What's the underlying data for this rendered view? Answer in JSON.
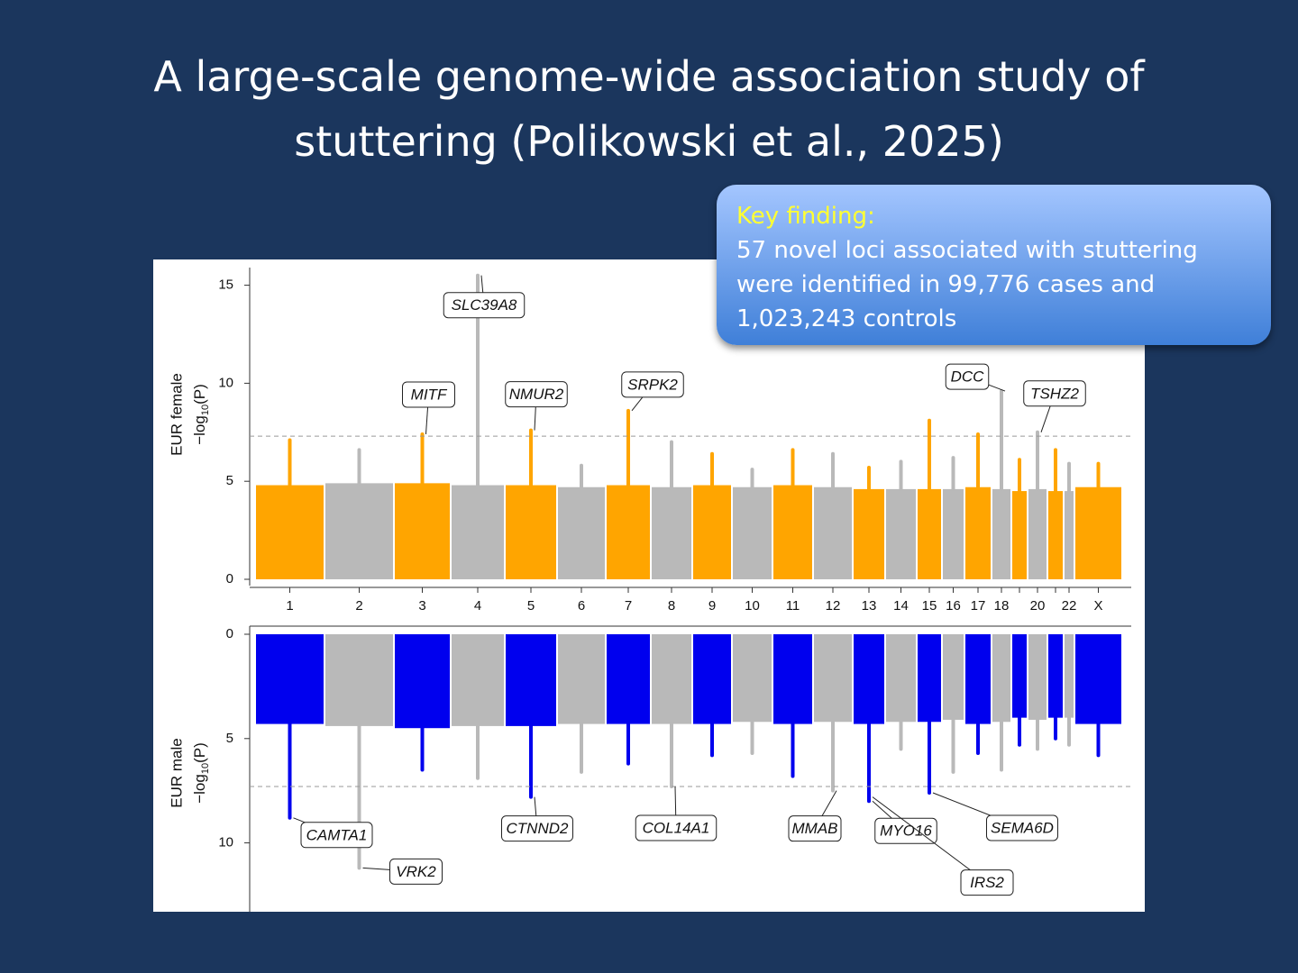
{
  "slide": {
    "title": [
      "A large-scale genome-wide association study of",
      "stuttering (Polikowski et al., 2025)"
    ],
    "callout": {
      "heading": "Key finding:",
      "lines": [
        "57 novel loci associated with stuttering",
        "were identified in 99,776 cases and",
        "1,023,243 controls"
      ]
    }
  },
  "chart_data": [
    {
      "type": "manhattan",
      "direction": "up",
      "ylabel": "EUR female",
      "ylabel_math": {
        "prefix": "−log",
        "sub": "10",
        "suffix": "(P)"
      },
      "categories": [
        "1",
        "2",
        "3",
        "4",
        "5",
        "6",
        "7",
        "8",
        "9",
        "10",
        "11",
        "12",
        "13",
        "14",
        "15",
        "16",
        "17",
        "18",
        null,
        "20",
        null,
        "22",
        "X"
      ],
      "values": [
        7.1,
        6.6,
        7.4,
        15.5,
        7.6,
        5.8,
        8.6,
        7.0,
        6.4,
        5.6,
        6.6,
        6.4,
        5.7,
        6.0,
        8.1,
        6.2,
        7.4,
        9.6,
        6.1,
        7.5,
        6.6,
        5.9,
        5.9
      ],
      "cloud": [
        4.8,
        4.9,
        4.9,
        4.8,
        4.8,
        4.7,
        4.8,
        4.7,
        4.8,
        4.7,
        4.8,
        4.7,
        4.6,
        4.6,
        4.6,
        4.6,
        4.7,
        4.6,
        4.5,
        4.6,
        4.5,
        4.5,
        4.7
      ],
      "colors": [
        "#ffa500",
        "#b9b9b9"
      ],
      "ylim": [
        0,
        15.9
      ],
      "yticks": [
        0,
        5,
        10,
        15
      ],
      "threshold": 7.3,
      "annotations": [
        {
          "label": "SLC39A8",
          "category": 3,
          "value": 15.5
        },
        {
          "label": "MITF",
          "category": 2,
          "value": 7.4
        },
        {
          "label": "NMUR2",
          "category": 4,
          "value": 7.6
        },
        {
          "label": "SRPK2",
          "category": 6,
          "value": 8.6
        },
        {
          "label": "DCC",
          "category": 17,
          "value": 9.6
        },
        {
          "label": "TSHZ2",
          "category": 19,
          "value": 7.5
        }
      ]
    },
    {
      "type": "manhattan",
      "direction": "down",
      "ylabel": "EUR male",
      "ylabel_math": {
        "prefix": "−log",
        "sub": "10",
        "suffix": "(P)"
      },
      "values": [
        8.8,
        11.2,
        6.5,
        6.9,
        7.8,
        6.6,
        6.2,
        7.3,
        5.8,
        5.7,
        6.8,
        7.5,
        8.0,
        5.5,
        7.6,
        6.6,
        5.7,
        6.5,
        5.3,
        5.5,
        5.0,
        5.3,
        5.8
      ],
      "cloud": [
        4.3,
        4.4,
        4.5,
        4.4,
        4.4,
        4.3,
        4.3,
        4.3,
        4.3,
        4.2,
        4.3,
        4.2,
        4.3,
        4.2,
        4.2,
        4.1,
        4.3,
        4.2,
        4.0,
        4.1,
        4.0,
        4.0,
        4.3
      ],
      "colors": [
        "#0000ee",
        "#b9b9b9"
      ],
      "ylim": [
        0,
        13.3
      ],
      "yticks": [
        0,
        5,
        10
      ],
      "threshold": 7.3,
      "annotations": [
        {
          "label": "CAMTA1",
          "category": 0,
          "value": 8.8
        },
        {
          "label": "VRK2",
          "category": 1,
          "value": 11.2
        },
        {
          "label": "CTNND2",
          "category": 4,
          "value": 7.8
        },
        {
          "label": "COL14A1",
          "category": 7,
          "value": 7.3
        },
        {
          "label": "MMAB",
          "category": 11,
          "value": 7.5
        },
        {
          "label": "MYO16",
          "category": 12,
          "value": 8.0
        },
        {
          "label": "IRS2",
          "category": 12,
          "value": 7.8
        },
        {
          "label": "SEMA6D",
          "category": 14,
          "value": 7.6
        }
      ]
    }
  ]
}
